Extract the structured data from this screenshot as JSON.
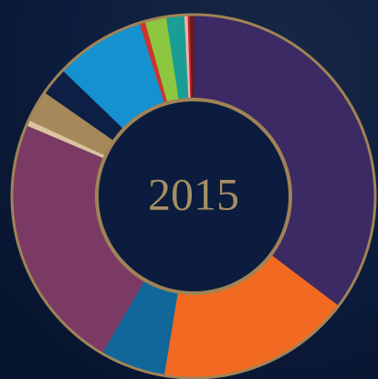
{
  "chart_data": {
    "type": "donut",
    "title": "2015",
    "values": [
      35.3,
      17.3,
      5.8,
      23,
      0.5,
      2.8,
      2.5,
      8,
      0.5,
      1.9,
      1.6,
      0.3,
      0.2,
      0.3
    ],
    "colors": [
      "#3b2a63",
      "#f26a21",
      "#12679a",
      "#7b3a63",
      "#d9c3a0",
      "#a6895a",
      "#0d1f45",
      "#1591cf",
      "#d0342c",
      "#8dc63f",
      "#1a9d94",
      "#f0b0a8",
      "#c0282d",
      "#6b1a1e"
    ]
  }
}
